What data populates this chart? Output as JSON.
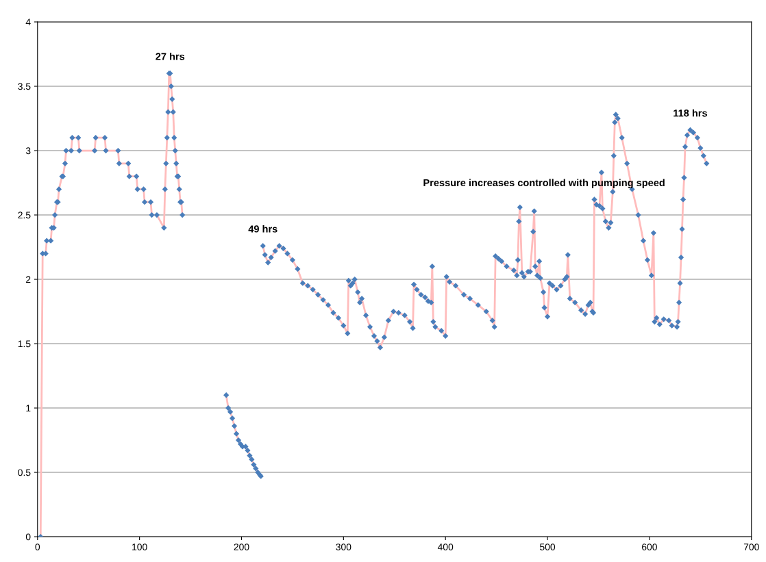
{
  "chart_data": {
    "type": "line",
    "x": [
      3,
      5,
      8,
      9,
      13,
      14,
      16,
      17,
      19,
      20,
      21,
      24,
      25,
      27,
      28,
      33,
      34,
      40,
      41,
      56,
      57,
      66,
      67,
      79,
      80,
      89,
      90,
      97,
      98,
      104,
      105,
      111,
      112,
      117,
      124,
      125,
      126,
      127,
      128,
      129,
      130,
      131,
      132,
      133,
      134,
      135,
      136,
      137,
      138,
      139,
      140,
      141,
      142,
      160,
      185,
      187,
      189,
      191,
      193,
      195,
      197,
      199,
      201,
      204,
      206,
      208,
      210,
      212,
      214,
      216,
      218,
      219,
      220,
      221,
      223,
      226,
      229,
      233,
      237,
      241,
      245,
      250,
      255,
      260,
      265,
      270,
      275,
      280,
      285,
      290,
      295,
      300,
      304,
      305,
      307,
      309,
      311,
      314,
      316,
      318,
      322,
      326,
      330,
      333,
      336,
      340,
      344,
      349,
      354,
      360,
      365,
      368,
      369,
      372,
      376,
      380,
      383,
      386,
      387,
      388,
      390,
      396,
      400,
      401,
      404,
      410,
      418,
      424,
      432,
      440,
      446,
      448,
      449,
      452,
      455,
      460,
      467,
      470,
      471,
      472,
      473,
      475,
      477,
      481,
      483,
      486,
      487,
      488,
      490,
      492,
      493,
      496,
      497,
      500,
      502,
      505,
      509,
      513,
      517,
      519,
      520,
      522,
      527,
      533,
      537,
      540,
      542,
      544,
      545,
      546,
      548,
      551,
      553,
      554,
      557,
      560,
      562,
      564,
      565,
      566,
      567,
      569,
      573,
      578,
      583,
      589,
      594,
      598,
      602,
      604,
      605,
      607,
      610,
      614,
      619,
      622,
      627,
      628,
      629,
      630,
      631,
      632,
      633,
      634,
      635,
      637,
      640,
      643,
      647,
      650,
      653,
      656
    ],
    "series": [
      {
        "color": "#4a7ebb",
        "values": [
          0,
          2.2,
          2.2,
          2.3,
          2.3,
          2.4,
          2.4,
          2.5,
          2.6,
          2.6,
          2.7,
          2.8,
          2.8,
          2.9,
          3.0,
          3.0,
          3.1,
          3.1,
          3.0,
          3.0,
          3.1,
          3.1,
          3.0,
          3.0,
          2.9,
          2.9,
          2.8,
          2.8,
          2.7,
          2.7,
          2.6,
          2.6,
          2.5,
          2.5,
          2.4,
          2.7,
          2.9,
          3.1,
          3.3,
          3.6,
          3.6,
          3.5,
          3.4,
          3.3,
          3.1,
          3.0,
          2.9,
          2.8,
          2.8,
          2.7,
          2.6,
          2.6,
          2.5,
          null,
          1.1,
          1.0,
          0.97,
          0.92,
          0.86,
          0.8,
          0.75,
          0.72,
          0.7,
          0.7,
          0.67,
          0.63,
          0.6,
          0.56,
          0.53,
          0.5,
          0.48,
          0.47,
          null,
          2.26,
          2.19,
          2.13,
          2.17,
          2.22,
          2.26,
          2.24,
          2.2,
          2.15,
          2.08,
          1.97,
          1.95,
          1.92,
          1.88,
          1.84,
          1.8,
          1.74,
          1.7,
          1.64,
          1.58,
          1.99,
          1.95,
          1.97,
          2.0,
          1.9,
          1.82,
          1.85,
          1.72,
          1.63,
          1.56,
          1.52,
          1.47,
          1.55,
          1.68,
          1.75,
          1.74,
          1.72,
          1.67,
          1.62,
          1.96,
          1.92,
          1.88,
          1.86,
          1.83,
          1.82,
          2.1,
          1.67,
          1.63,
          1.6,
          1.56,
          2.02,
          1.98,
          1.95,
          1.88,
          1.85,
          1.8,
          1.75,
          1.68,
          1.63,
          2.18,
          2.16,
          2.14,
          2.1,
          2.07,
          2.03,
          2.15,
          2.45,
          2.56,
          2.05,
          2.02,
          2.06,
          2.06,
          2.37,
          2.53,
          2.1,
          2.03,
          2.14,
          2.01,
          1.9,
          1.78,
          1.71,
          1.97,
          1.95,
          1.92,
          1.95,
          2.0,
          2.02,
          2.19,
          1.85,
          1.82,
          1.76,
          1.73,
          1.8,
          1.82,
          1.75,
          1.74,
          2.62,
          2.58,
          2.57,
          2.83,
          2.55,
          2.45,
          2.4,
          2.44,
          2.68,
          2.96,
          3.22,
          3.28,
          3.25,
          3.1,
          2.9,
          2.7,
          2.5,
          2.3,
          2.15,
          2.03,
          2.36,
          1.67,
          1.7,
          1.65,
          1.69,
          1.68,
          1.64,
          1.63,
          1.67,
          1.82,
          1.97,
          2.17,
          2.39,
          2.62,
          2.79,
          3.03,
          3.12,
          3.16,
          3.14,
          3.1,
          3.02,
          2.96,
          2.9
        ]
      }
    ],
    "xlim": [
      0,
      700
    ],
    "xticks": [
      0,
      100,
      200,
      300,
      400,
      500,
      600,
      700
    ],
    "ylim": [
      0,
      4
    ],
    "yticks": [
      0,
      0.5,
      1,
      1.5,
      2,
      2.5,
      3,
      3.5,
      4
    ],
    "grid": "y",
    "marker": "diamond",
    "line_style": "solid",
    "legend": false,
    "annotations": [
      {
        "text": "27 hrs",
        "x": 130,
        "y": 3.6
      },
      {
        "text": "49 hrs",
        "x": 221,
        "y": 2.26
      },
      {
        "text": "118 hrs",
        "x": 640,
        "y": 3.16
      },
      "Pressure increases controlled with pumping speed"
    ]
  }
}
